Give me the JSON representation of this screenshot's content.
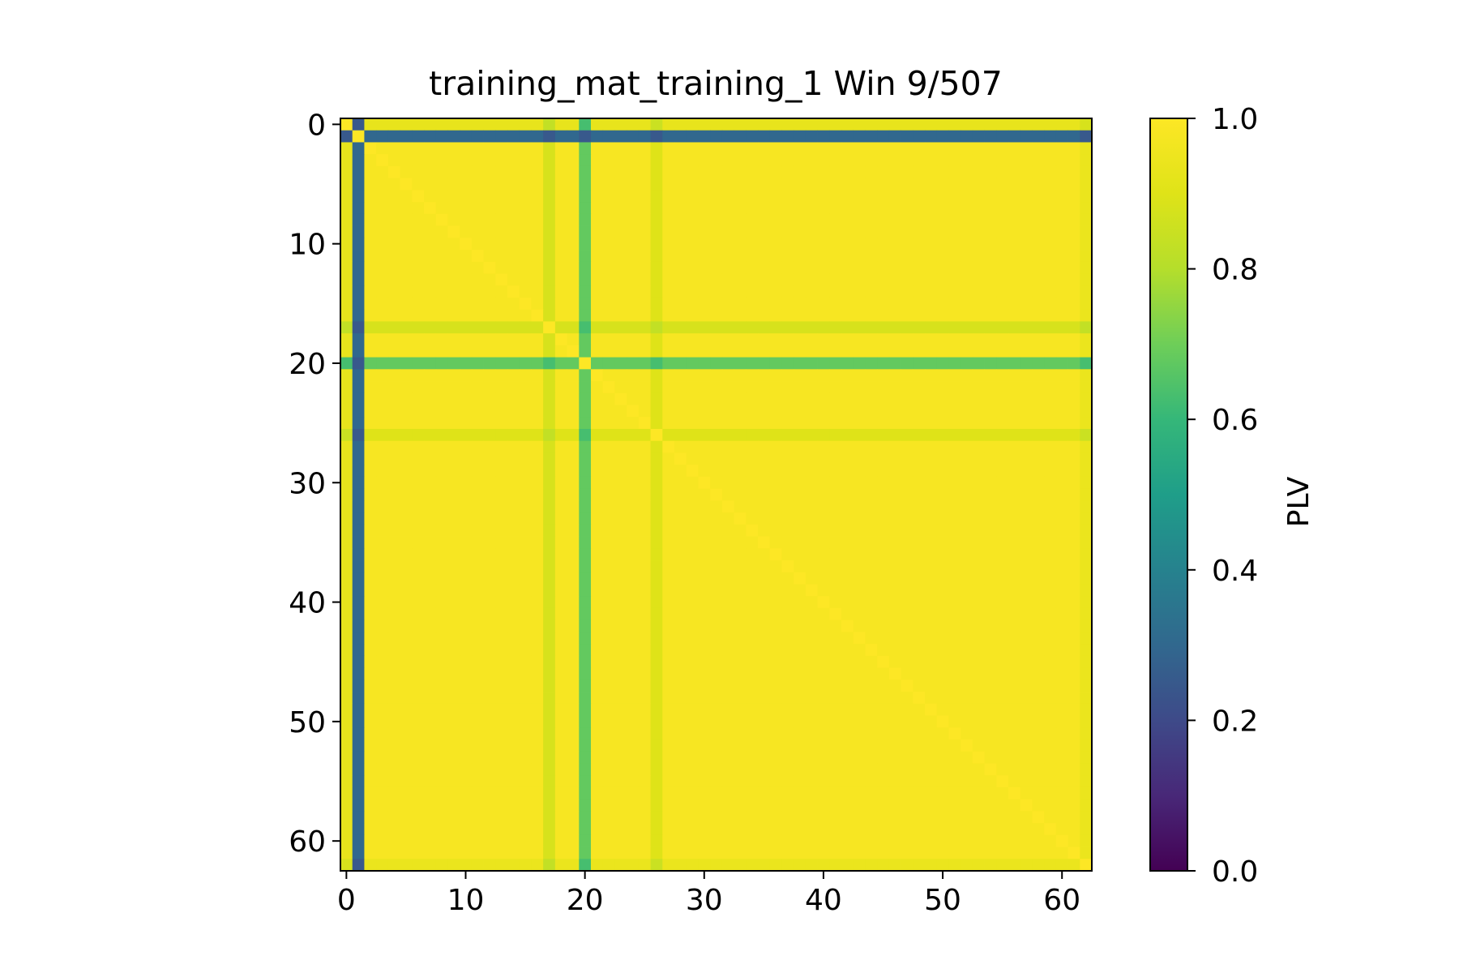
{
  "chart_data": {
    "type": "heatmap",
    "title": "training_mat_training_1 Win 9/507",
    "xlabel": "",
    "ylabel": "",
    "colorbar_label": "PLV",
    "colormap": "viridis",
    "n_rows": 63,
    "n_cols": 63,
    "xlim": [
      -0.5,
      62.5
    ],
    "ylim": [
      62.5,
      -0.5
    ],
    "vmin": 0.0,
    "vmax": 1.0,
    "x_ticks": [
      0,
      10,
      20,
      30,
      40,
      50,
      60
    ],
    "y_ticks": [
      0,
      10,
      20,
      30,
      40,
      50,
      60
    ],
    "x_tick_labels": [
      "0",
      "10",
      "20",
      "30",
      "40",
      "50",
      "60"
    ],
    "y_tick_labels": [
      "0",
      "10",
      "20",
      "30",
      "40",
      "50",
      "60"
    ],
    "colorbar_ticks": [
      0.0,
      0.2,
      0.4,
      0.6,
      0.8,
      1.0
    ],
    "colorbar_tick_labels": [
      "0.0",
      "0.2",
      "0.4",
      "0.6",
      "0.8",
      "1.0"
    ],
    "baseline_value": 0.98,
    "diagonal_value": 1.0,
    "channel_profiles": [
      {
        "index": 0,
        "value": 0.93
      },
      {
        "index": 1,
        "value": 0.3
      },
      {
        "index": 17,
        "value": 0.88
      },
      {
        "index": 20,
        "value": 0.68
      },
      {
        "index": 26,
        "value": 0.9
      },
      {
        "index": 62,
        "value": 0.94
      }
    ]
  }
}
